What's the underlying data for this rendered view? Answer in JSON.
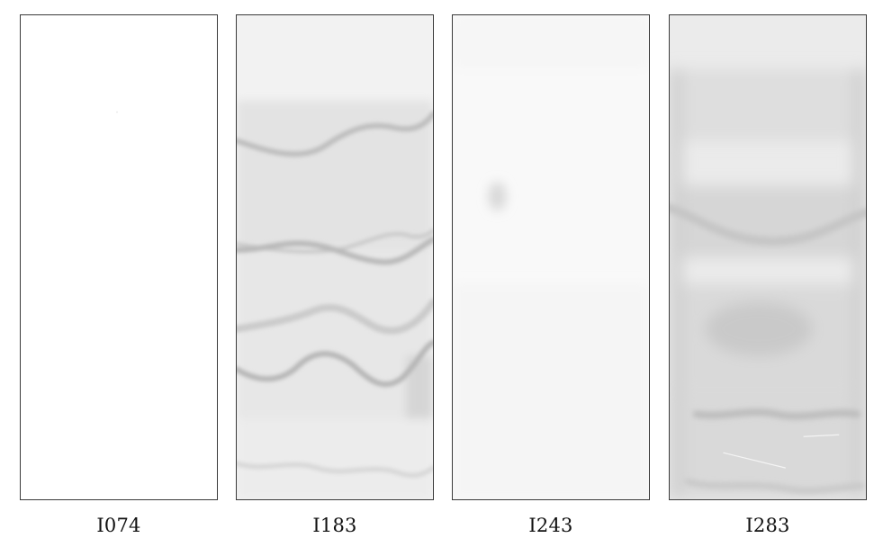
{
  "figure": {
    "panels": [
      {
        "id": "panel-1",
        "label": "I074"
      },
      {
        "id": "panel-2",
        "label": "I183"
      },
      {
        "id": "panel-3",
        "label": "I243"
      },
      {
        "id": "panel-4",
        "label": "I283"
      }
    ],
    "colors": {
      "border": "#3a3a3a",
      "background": "#ffffff",
      "text": "#111111"
    }
  }
}
